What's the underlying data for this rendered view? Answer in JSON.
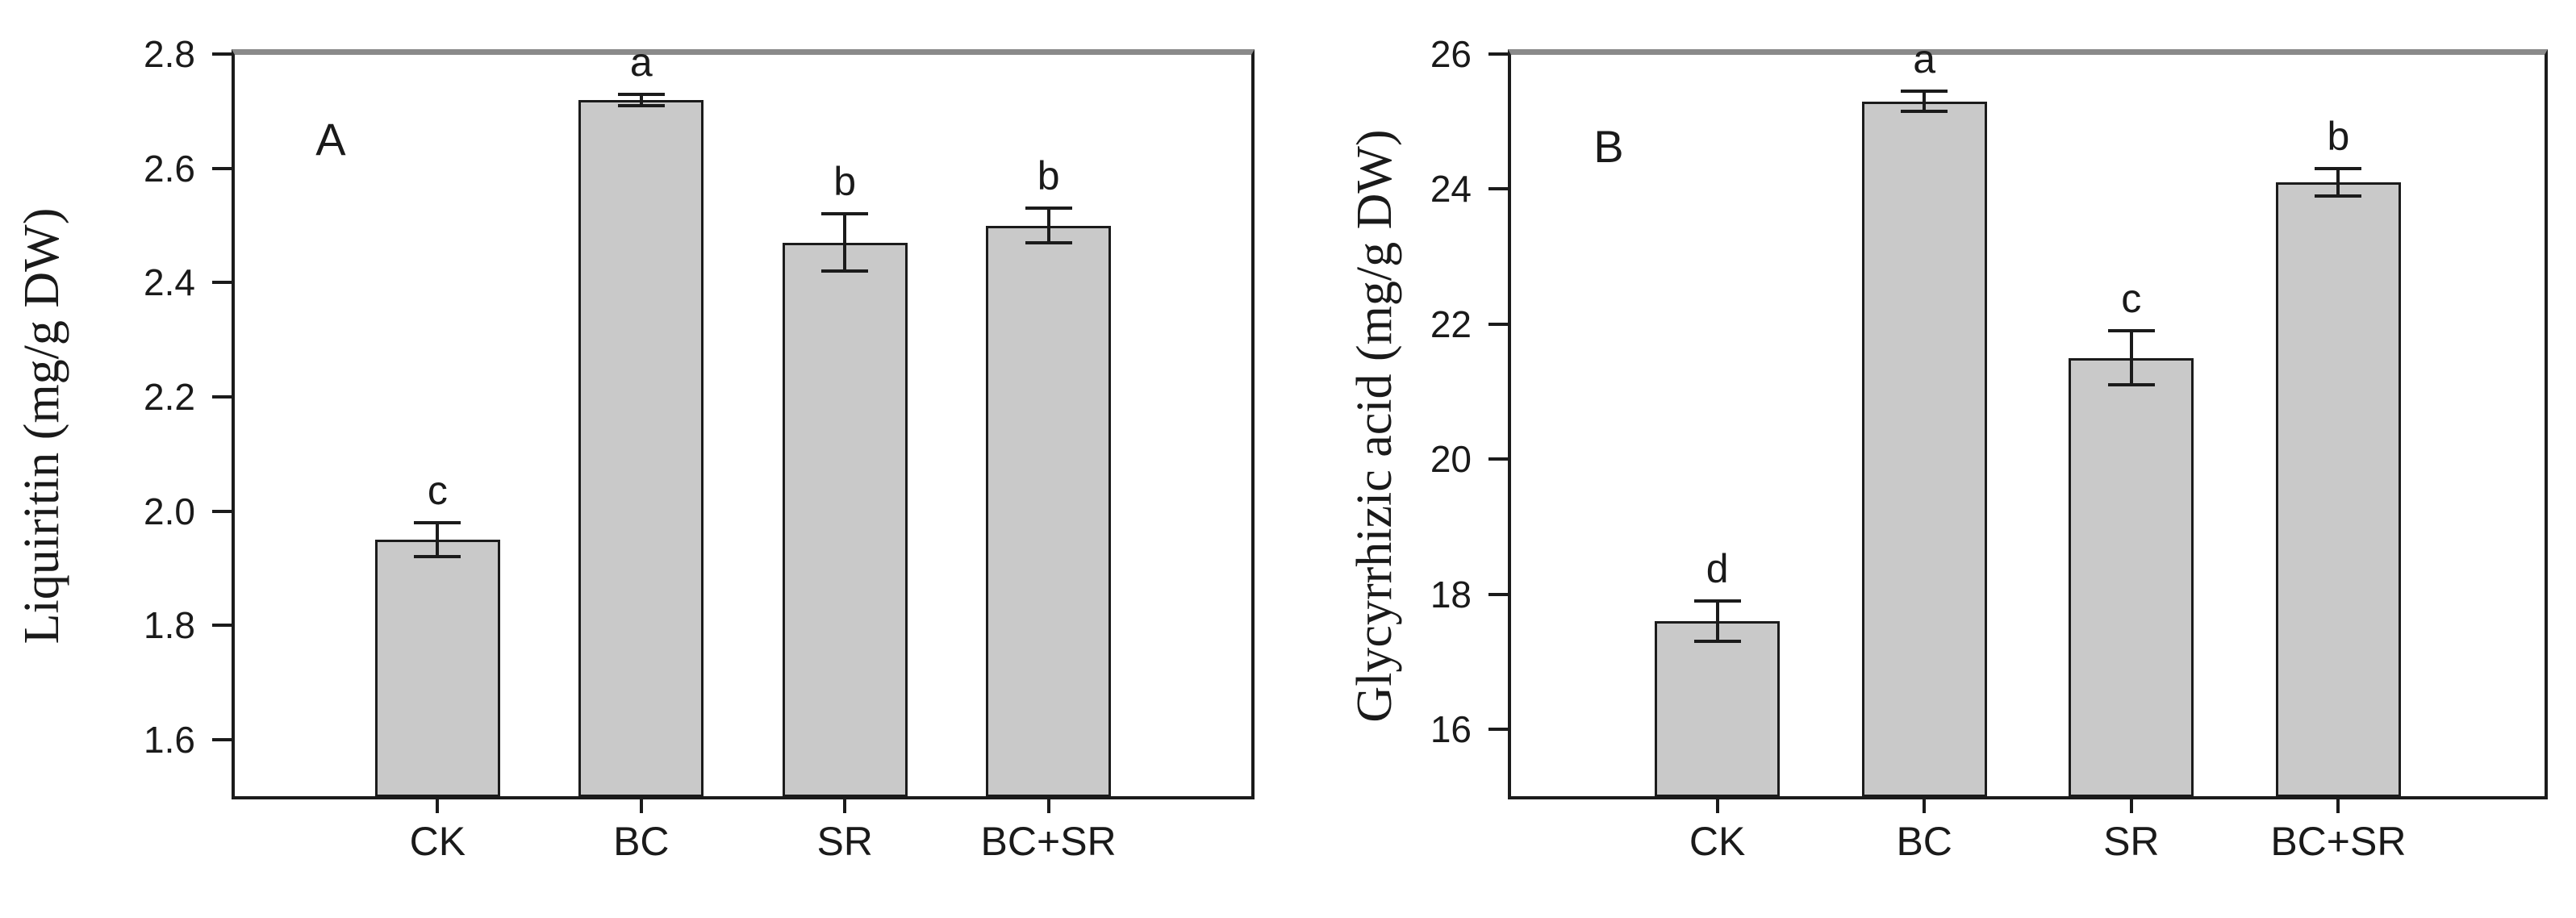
{
  "colors": {
    "background": "#ffffff",
    "bar_fill": "#c9c9c9",
    "bar_border": "#1b1b1b",
    "frame_top": "#8a8a8a",
    "axis": "#1b1b1b",
    "text": "#1a1a1a"
  },
  "chart_data": [
    {
      "type": "bar",
      "panel_label": "A",
      "title": "",
      "xlabel": "",
      "ylabel": "Liquiritin (mg/g DW)",
      "categories": [
        "CK",
        "BC",
        "SR",
        "BC+SR"
      ],
      "values": [
        1.95,
        2.72,
        2.47,
        2.5
      ],
      "errors": [
        0.03,
        0.01,
        0.05,
        0.03
      ],
      "sig_letters": [
        "c",
        "a",
        "b",
        "b"
      ],
      "ylim": [
        1.5,
        2.8
      ],
      "yticks": [
        1.6,
        1.8,
        2.0,
        2.2,
        2.4,
        2.6,
        2.8
      ],
      "ytick_labels": [
        "1.6",
        "1.8",
        "2.0",
        "2.2",
        "2.4",
        "2.6",
        "2.8"
      ],
      "grid": "off",
      "legend": "none"
    },
    {
      "type": "bar",
      "panel_label": "B",
      "title": "",
      "xlabel": "",
      "ylabel": "Glycyrrhizic acid (mg/g DW)",
      "categories": [
        "CK",
        "BC",
        "SR",
        "BC+SR"
      ],
      "values": [
        17.6,
        25.3,
        21.5,
        24.1
      ],
      "errors": [
        0.3,
        0.15,
        0.4,
        0.2
      ],
      "sig_letters": [
        "d",
        "a",
        "c",
        "b"
      ],
      "ylim": [
        15,
        26
      ],
      "yticks": [
        16,
        18,
        20,
        22,
        24,
        26
      ],
      "ytick_labels": [
        "16",
        "18",
        "20",
        "22",
        "24",
        "26"
      ],
      "grid": "off",
      "legend": "none"
    }
  ]
}
